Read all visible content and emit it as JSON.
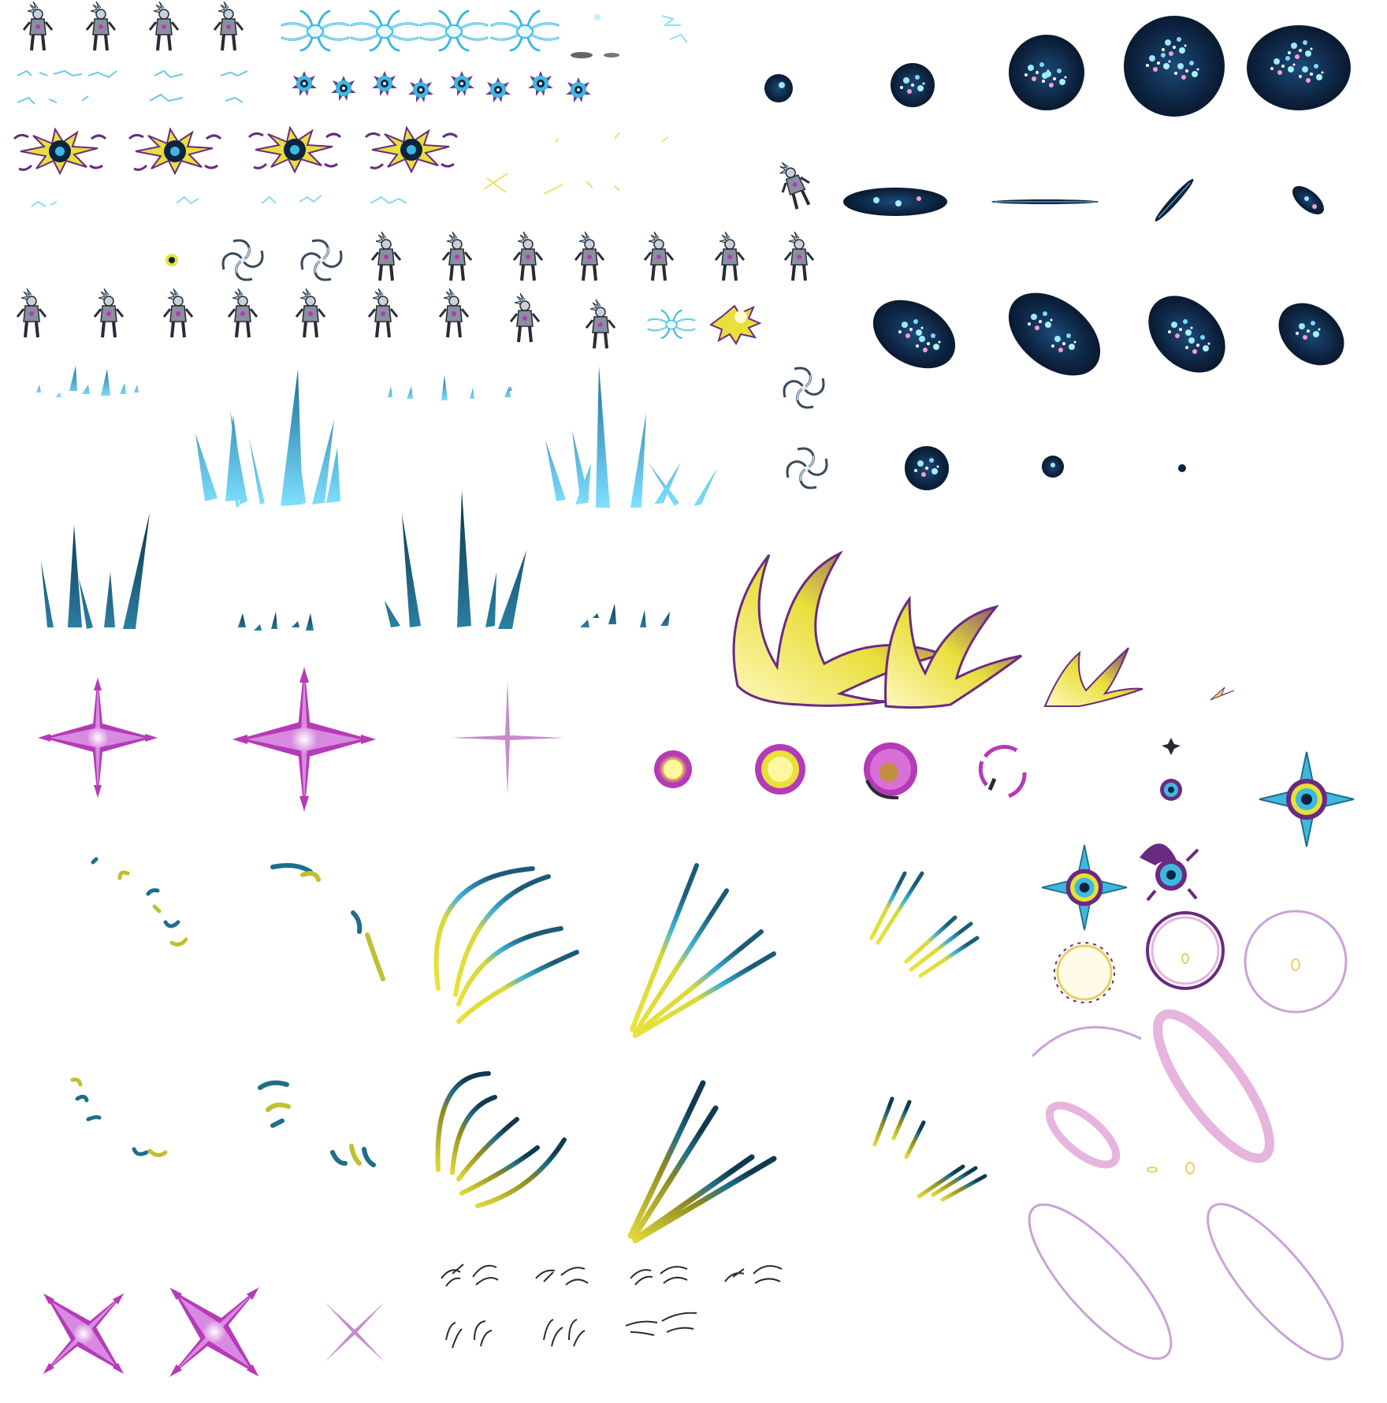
{
  "sheet": {
    "background": "#ffffff",
    "palette": {
      "cyan": "#3fb8e0",
      "teal": "#1f6e8a",
      "navy": "#0d2340",
      "yellow": "#e8df3a",
      "magenta": "#b53ab8",
      "lilac": "#caa2d8",
      "pink": "#e6b4dc",
      "dark": "#2a2a35"
    },
    "sprite_groups": [
      {
        "name": "character-idle-frames",
        "icon": "armored-character-icon"
      },
      {
        "name": "tentacle-burst-frames",
        "icon": "tentacle-burst-icon"
      },
      {
        "name": "blue-flower-orb-frames",
        "icon": "flower-orb-icon"
      },
      {
        "name": "yellow-dark-explosion-frames",
        "icon": "explosion-icon"
      },
      {
        "name": "galaxy-orb-frames",
        "icon": "galaxy-orb-icon"
      },
      {
        "name": "galaxy-ellipse-frames",
        "icon": "galaxy-ellipse-icon"
      },
      {
        "name": "vortex-frames",
        "icon": "vortex-icon"
      },
      {
        "name": "cyan-ice-spike-frames",
        "icon": "ice-spike-icon"
      },
      {
        "name": "dark-spike-frames",
        "icon": "dark-spike-icon"
      },
      {
        "name": "magenta-cross-star-frames",
        "icon": "cross-star-icon"
      },
      {
        "name": "yellow-purple-burst-frames",
        "icon": "burst-icon"
      },
      {
        "name": "purple-ring-frames",
        "icon": "ring-icon"
      },
      {
        "name": "compass-star-frames",
        "icon": "compass-star-icon"
      },
      {
        "name": "blue-yellow-streak-frames",
        "icon": "streak-icon"
      },
      {
        "name": "magenta-x-star-frames",
        "icon": "x-star-icon"
      },
      {
        "name": "claw-frames",
        "icon": "claw-icon"
      },
      {
        "name": "pink-ellipse-ring-frames",
        "icon": "ellipse-ring-icon"
      }
    ]
  }
}
